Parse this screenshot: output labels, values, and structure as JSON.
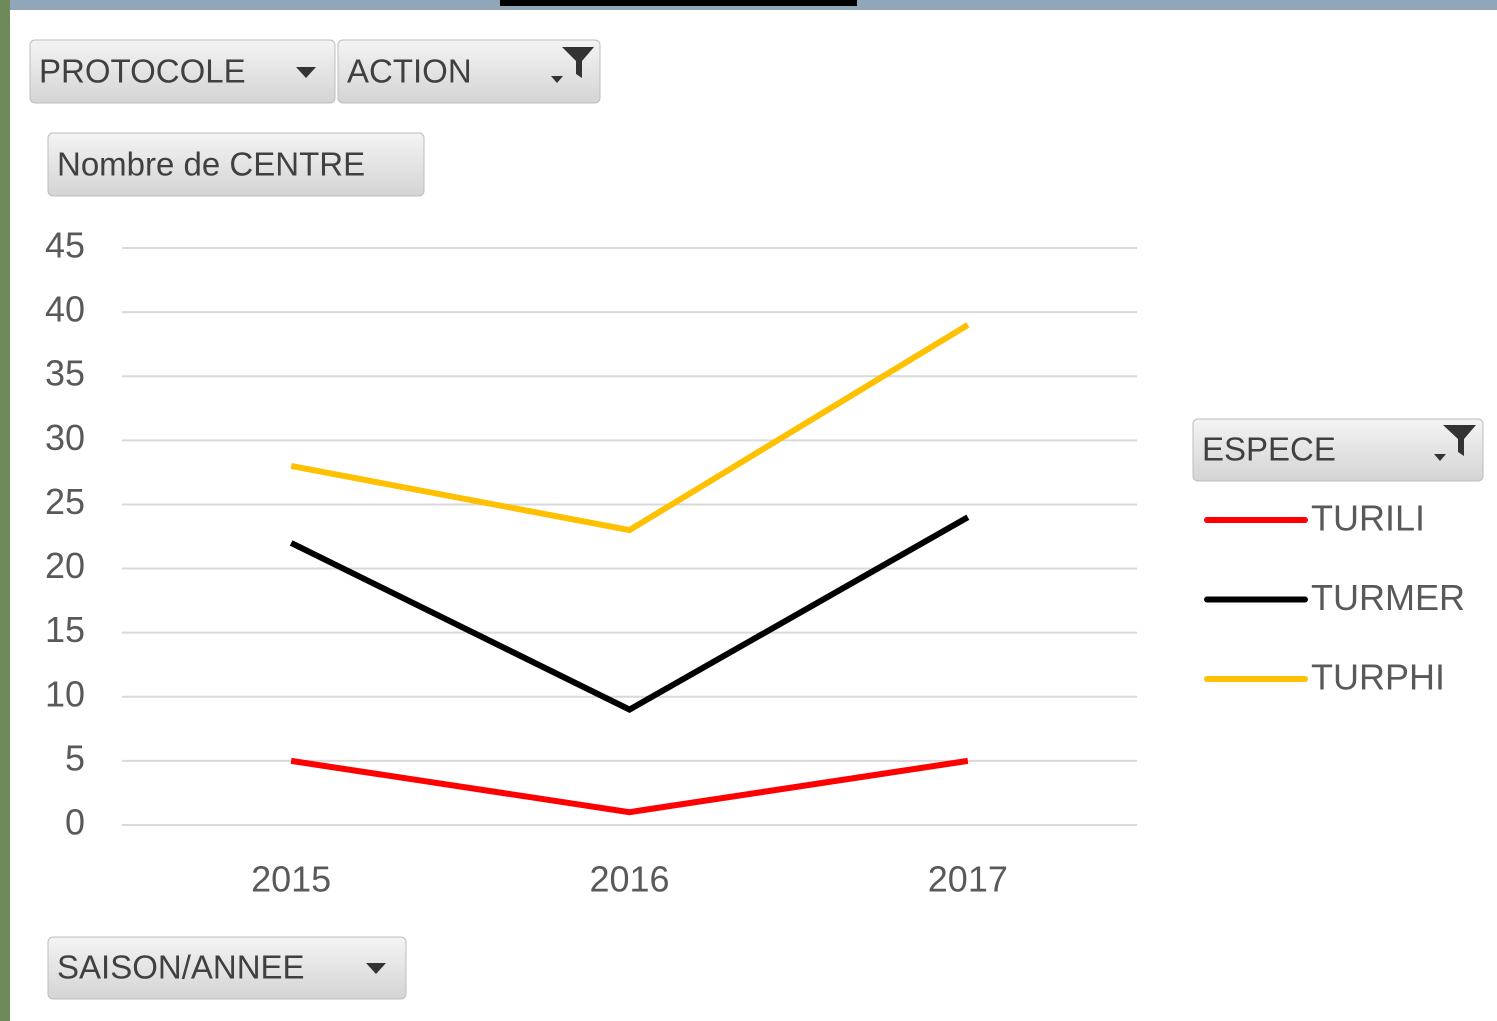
{
  "chart_data": {
    "type": "line",
    "filter_fields": [
      "PROTOCOLE",
      "ACTION"
    ],
    "value_field": "Nombre de CENTRE",
    "axis_field": "SAISON/ANNEE",
    "legend_title": "ESPECE",
    "legend": "right",
    "grid": true,
    "categories": [
      "2015",
      "2016",
      "2017"
    ],
    "series": [
      {
        "name": "TURILI",
        "color": "#ff0000",
        "values": [
          5,
          1,
          5
        ]
      },
      {
        "name": "TURMER",
        "color": "#000000",
        "values": [
          22,
          9,
          24
        ]
      },
      {
        "name": "TURPHI",
        "color": "#ffc000",
        "values": [
          28,
          23,
          39
        ]
      }
    ],
    "ylim": [
      0,
      45
    ],
    "yticks": [
      0,
      5,
      10,
      15,
      20,
      25,
      30,
      35,
      40,
      45
    ]
  }
}
